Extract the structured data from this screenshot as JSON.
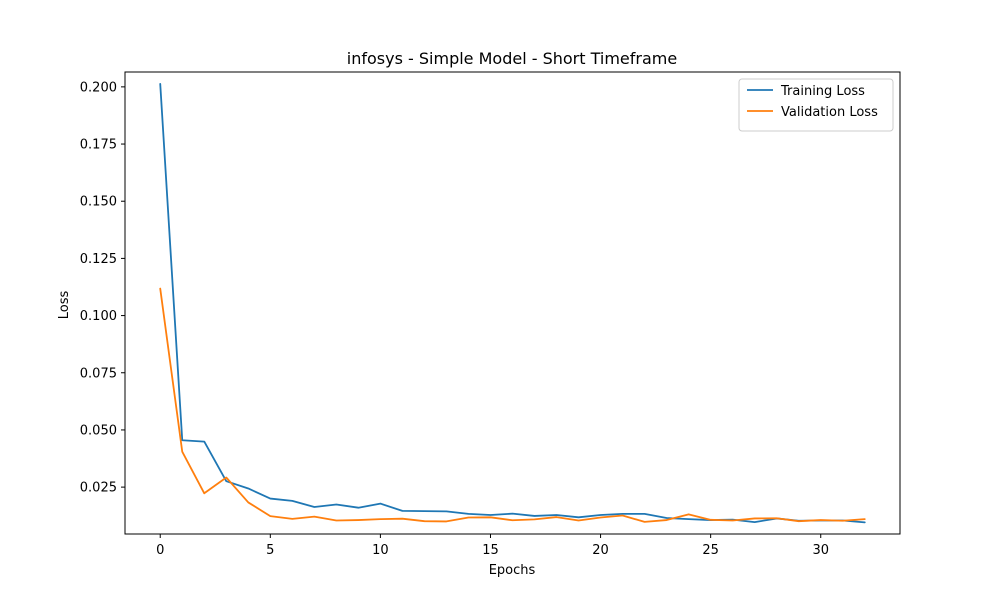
{
  "chart_data": {
    "type": "line",
    "title": "infosys - Simple Model - Short Timeframe",
    "xlabel": "Epochs",
    "ylabel": "Loss",
    "xlim": [
      -1.6,
      33.6
    ],
    "ylim": [
      0.0045,
      0.2065
    ],
    "xticks": [
      0,
      5,
      10,
      15,
      20,
      25,
      30
    ],
    "yticks": [
      0.025,
      0.05,
      0.075,
      0.1,
      0.125,
      0.15,
      0.175,
      0.2
    ],
    "ytick_labels": [
      "0.025",
      "0.050",
      "0.075",
      "0.100",
      "0.125",
      "0.150",
      "0.175",
      "0.200"
    ],
    "grid": false,
    "legend": "top-right",
    "x": [
      0,
      1,
      2,
      3,
      4,
      5,
      6,
      7,
      8,
      9,
      10,
      11,
      12,
      13,
      14,
      15,
      16,
      17,
      18,
      19,
      20,
      21,
      22,
      23,
      24,
      25,
      26,
      27,
      28,
      29,
      30,
      31,
      32
    ],
    "series": [
      {
        "name": "Training Loss",
        "color": "#1f77b4",
        "values": [
          0.2013,
          0.0455,
          0.0449,
          0.0276,
          0.0244,
          0.02,
          0.019,
          0.0163,
          0.0174,
          0.016,
          0.0178,
          0.0146,
          0.0145,
          0.0144,
          0.0133,
          0.0128,
          0.0134,
          0.0124,
          0.0128,
          0.0118,
          0.0128,
          0.0133,
          0.0133,
          0.0115,
          0.011,
          0.0106,
          0.0108,
          0.0097,
          0.0113,
          0.0103,
          0.0104,
          0.0104,
          0.0096
        ]
      },
      {
        "name": "Validation Loss",
        "color": "#ff7f0e",
        "values": [
          0.1118,
          0.0405,
          0.0223,
          0.0292,
          0.0183,
          0.0123,
          0.0111,
          0.0121,
          0.0104,
          0.0106,
          0.011,
          0.0112,
          0.0101,
          0.01,
          0.0117,
          0.0118,
          0.0105,
          0.0109,
          0.0119,
          0.0104,
          0.0117,
          0.0126,
          0.0098,
          0.0106,
          0.0131,
          0.0107,
          0.0104,
          0.0113,
          0.0114,
          0.0101,
          0.0106,
          0.0103,
          0.011
        ]
      }
    ]
  }
}
